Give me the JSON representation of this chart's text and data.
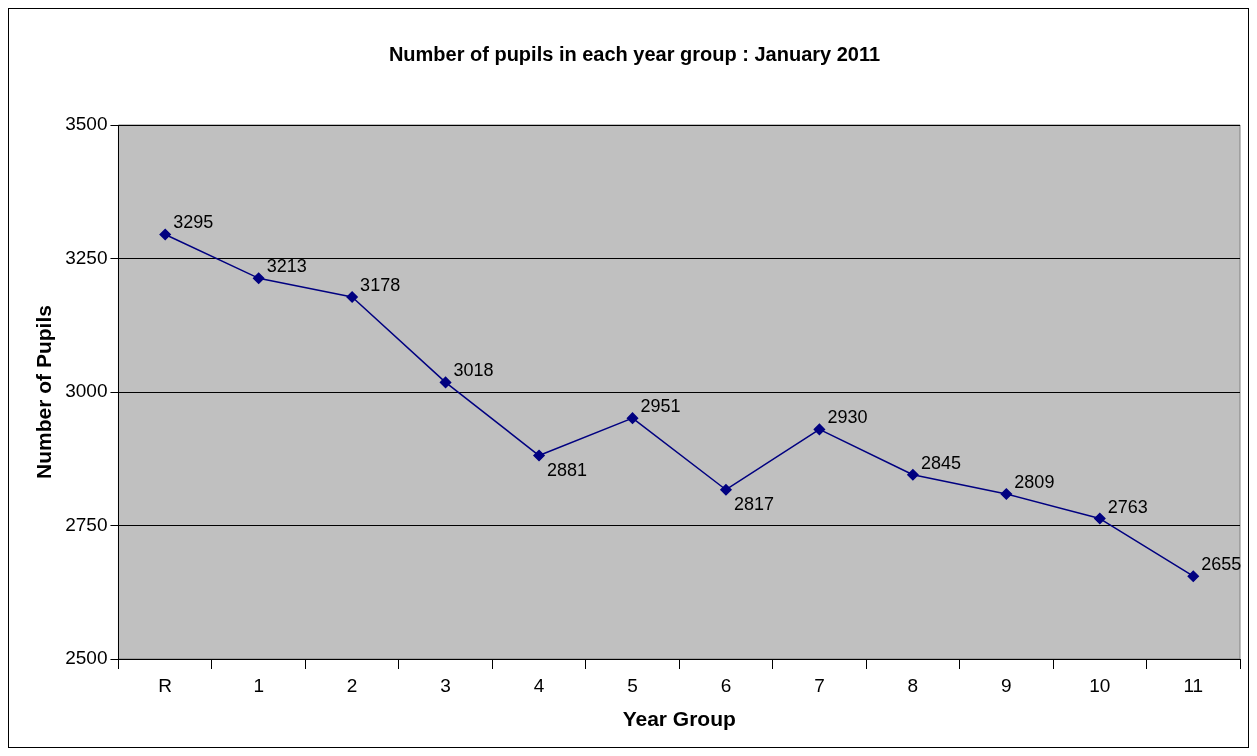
{
  "chart_data": {
    "type": "line",
    "title": "Number of pupils in each year group : January 2011",
    "xlabel": "Year Group",
    "ylabel": "Number of Pupils",
    "categories": [
      "R",
      "1",
      "2",
      "3",
      "4",
      "5",
      "6",
      "7",
      "8",
      "9",
      "10",
      "11"
    ],
    "series": [
      {
        "color": "#000080",
        "values": [
          3295,
          3213,
          3178,
          3018,
          2881,
          2951,
          2817,
          2930,
          2845,
          2809,
          2763,
          2655
        ]
      }
    ],
    "ylim": [
      2500,
      3500
    ],
    "yticks": [
      2500,
      2750,
      3000,
      3250,
      3500
    ],
    "grid": "y",
    "legend": false,
    "marker": "diamond",
    "line_style": "solid",
    "data_labels": true
  }
}
